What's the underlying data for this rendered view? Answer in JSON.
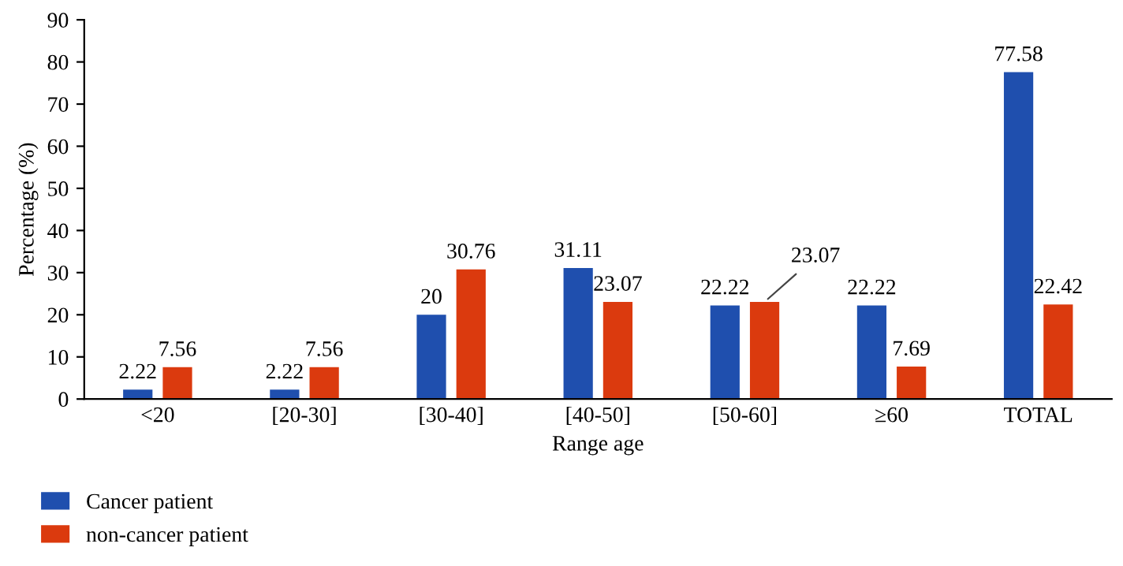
{
  "chart_data": {
    "type": "bar",
    "xlabel": "Range age",
    "ylabel": "Percentage (%)",
    "categories": [
      "<20",
      "[20-30]",
      "[30-40]",
      "[40-50]",
      "[50-60]",
      "≥60",
      "TOTAL"
    ],
    "series": [
      {
        "name": "Cancer patient",
        "color": "#1f4fae",
        "values": [
          2.22,
          2.22,
          20,
          31.11,
          22.22,
          22.22,
          77.58
        ]
      },
      {
        "name": "non-cancer patient",
        "color": "#db3a0e",
        "values": [
          7.56,
          7.56,
          30.76,
          23.07,
          23.07,
          7.69,
          22.42
        ]
      }
    ],
    "ylim": [
      0,
      90
    ],
    "yticks": [
      0,
      10,
      20,
      30,
      40,
      50,
      60,
      70,
      80,
      90
    ],
    "data_labels": true,
    "grid": false,
    "legend": "bottom left"
  }
}
